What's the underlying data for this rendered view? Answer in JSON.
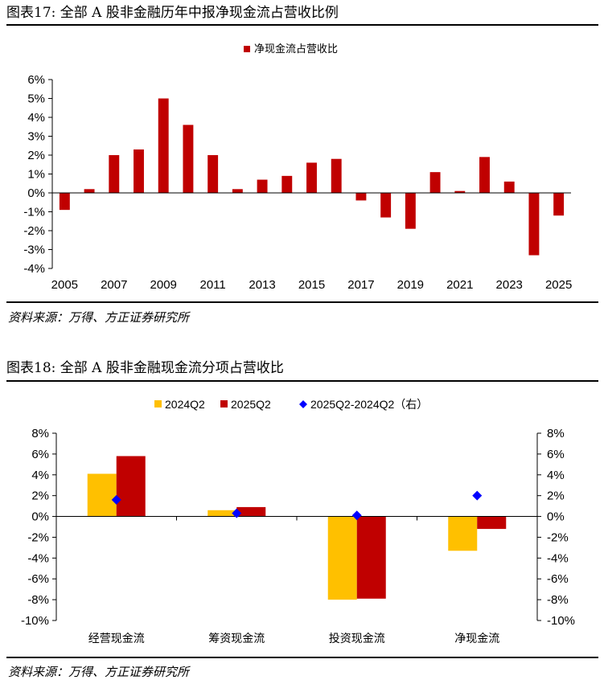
{
  "figure1": {
    "title": "图表17: 全部 A 股非金融历年中报净现金流占营收比例",
    "source": "资料来源：万得、方正证券研究所"
  },
  "figure2": {
    "title": "图表18: 全部 A 股非金融现金流分项占营收比",
    "source": "资料来源：万得、方正证券研究所"
  },
  "colors": {
    "red": "#C00000",
    "yellow": "#FFC000",
    "blue": "#0000FF"
  },
  "chart_data": [
    {
      "type": "bar",
      "x": [
        2005,
        2006,
        2007,
        2008,
        2009,
        2010,
        2011,
        2012,
        2013,
        2014,
        2015,
        2016,
        2017,
        2018,
        2019,
        2020,
        2021,
        2022,
        2023,
        2024,
        2025
      ],
      "x_tick_labels": [
        "2005",
        "2007",
        "2009",
        "2011",
        "2013",
        "2015",
        "2017",
        "2019",
        "2021",
        "2023",
        "2025"
      ],
      "series": [
        {
          "name": "净现金流占营收比",
          "values": [
            -0.9,
            0.2,
            2.0,
            2.3,
            5.0,
            3.6,
            2.0,
            0.2,
            0.7,
            0.9,
            1.6,
            1.8,
            -0.4,
            -1.3,
            -1.9,
            1.1,
            0.1,
            1.9,
            0.6,
            -3.3,
            -1.2
          ]
        }
      ],
      "ylim": [
        -4,
        6
      ],
      "y_ticks": [
        "-4%",
        "-3%",
        "-2%",
        "-1%",
        "0%",
        "1%",
        "2%",
        "3%",
        "4%",
        "5%",
        "6%"
      ],
      "legend_position": "top-center",
      "grid": false
    },
    {
      "type": "bar",
      "categories": [
        "经营现金流",
        "筹资现金流",
        "投资现金流",
        "净现金流"
      ],
      "series": [
        {
          "name": "2024Q2",
          "axis": "left",
          "values": [
            4.1,
            0.6,
            -8.0,
            -3.3
          ]
        },
        {
          "name": "2025Q2",
          "axis": "left",
          "values": [
            5.8,
            0.9,
            -7.9,
            -1.2
          ]
        },
        {
          "name": "2025Q2-2024Q2（右）",
          "axis": "right",
          "marker": "diamond",
          "values": [
            1.6,
            0.3,
            0.1,
            2.0
          ]
        }
      ],
      "ylim": [
        -10,
        8
      ],
      "y2lim": [
        -10,
        8
      ],
      "y_ticks": [
        "-10%",
        "-8%",
        "-6%",
        "-4%",
        "-2%",
        "0%",
        "2%",
        "4%",
        "6%",
        "8%"
      ],
      "legend_position": "top-center",
      "grid": false
    }
  ]
}
